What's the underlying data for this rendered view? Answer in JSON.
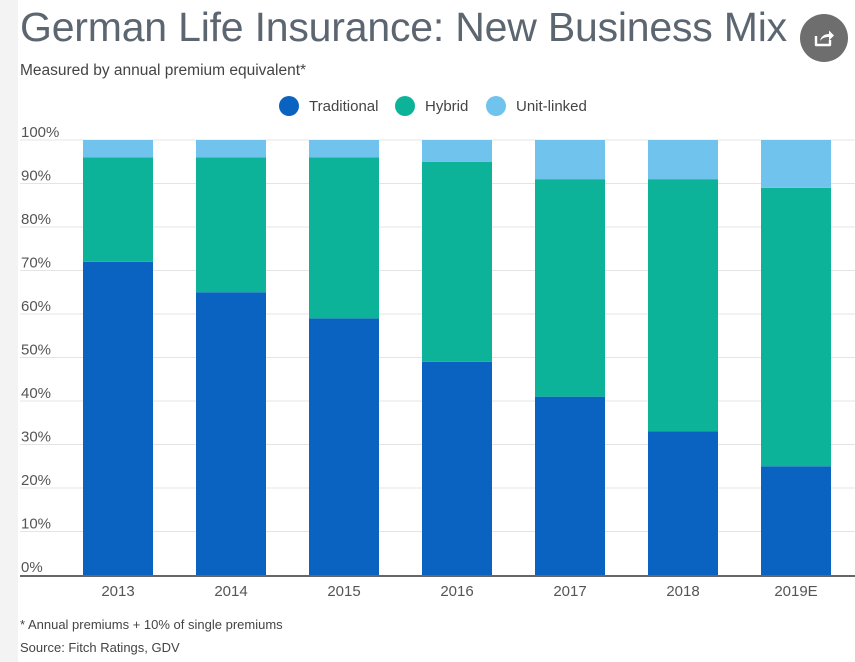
{
  "header": {
    "title": "German Life Insurance: New Business Mix",
    "subtitle": "Measured by annual premium equivalent*",
    "share_icon": "share-icon"
  },
  "legend": [
    {
      "label": "Traditional",
      "color": "#0b63c1"
    },
    {
      "label": "Hybrid",
      "color": "#0cb399"
    },
    {
      "label": "Unit-linked",
      "color": "#6fc3ec"
    }
  ],
  "chart_data": {
    "type": "bar",
    "stacked": true,
    "categories": [
      "2013",
      "2014",
      "2015",
      "2016",
      "2017",
      "2018",
      "2019E"
    ],
    "series": [
      {
        "name": "Traditional",
        "color": "#0b63c1",
        "values": [
          72,
          65,
          59,
          49,
          41,
          33,
          25
        ]
      },
      {
        "name": "Hybrid",
        "color": "#0cb399",
        "values": [
          24,
          31,
          37,
          46,
          50,
          58,
          64
        ]
      },
      {
        "name": "Unit-linked",
        "color": "#6fc3ec",
        "values": [
          4,
          4,
          4,
          5,
          9,
          9,
          11
        ]
      }
    ],
    "ylim": [
      0,
      100
    ],
    "yticks": [
      "0%",
      "10%",
      "20%",
      "30%",
      "40%",
      "50%",
      "60%",
      "70%",
      "80%",
      "90%",
      "100%"
    ],
    "grid": true,
    "legend_position": "top-center"
  },
  "footer": {
    "footnote": "* Annual premiums + 10% of single premiums",
    "source": "Source: Fitch Ratings, GDV"
  }
}
